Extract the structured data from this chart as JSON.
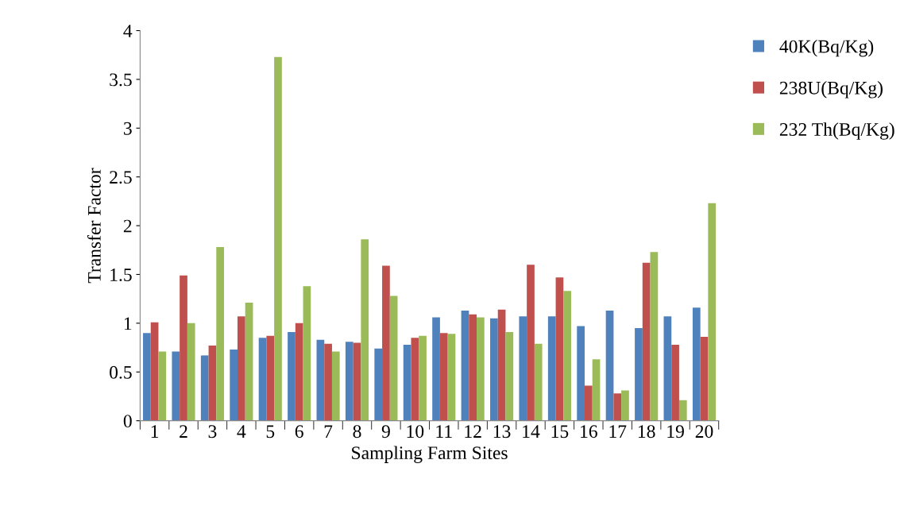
{
  "chart_data": {
    "type": "bar",
    "xlabel": "Sampling Farm Sites",
    "ylabel": "Transfer Factor",
    "categories": [
      "1",
      "2",
      "3",
      "4",
      "5",
      "6",
      "7",
      "8",
      "9",
      "10",
      "11",
      "12",
      "13",
      "14",
      "15",
      "16",
      "17",
      "18",
      "19",
      "20"
    ],
    "series": [
      {
        "name": "40K(Bq/Kg)",
        "color": "#4f81bd",
        "values": [
          0.9,
          0.71,
          0.67,
          0.73,
          0.85,
          0.91,
          0.83,
          0.81,
          0.74,
          0.78,
          1.06,
          1.13,
          1.05,
          1.07,
          1.07,
          0.97,
          1.13,
          0.95,
          1.07,
          1.16
        ]
      },
      {
        "name": "238U(Bq/Kg)",
        "color": "#c0504d",
        "values": [
          1.01,
          1.49,
          0.77,
          1.07,
          0.87,
          1.0,
          0.79,
          0.8,
          1.59,
          0.85,
          0.9,
          1.09,
          1.14,
          1.6,
          1.47,
          0.36,
          0.28,
          1.62,
          0.78,
          0.86
        ]
      },
      {
        "name": "232 Th(Bq/Kg)",
        "color": "#9bbb59",
        "values": [
          0.71,
          1.0,
          1.78,
          1.21,
          3.73,
          1.38,
          0.71,
          1.86,
          1.28,
          0.87,
          0.89,
          1.06,
          0.91,
          0.79,
          1.33,
          0.63,
          0.31,
          1.73,
          0.21,
          2.23
        ]
      }
    ],
    "ylim": [
      0,
      4
    ],
    "yticks": [
      0,
      {
        "value": 0.5,
        "label": "0.5"
      },
      1,
      {
        "value": 1.5,
        "label": "1.5"
      },
      2,
      {
        "value": 2.5,
        "label": "2.5"
      },
      3,
      {
        "value": 3.5,
        "label": "3.5"
      },
      4
    ],
    "grid": false,
    "legend": "right"
  }
}
